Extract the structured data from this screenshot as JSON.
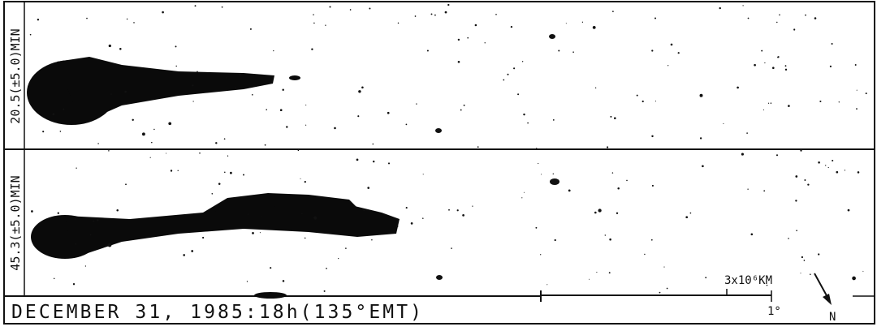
{
  "panels": [
    {
      "label": "20.5(±5.0)MIN"
    },
    {
      "label": "45.3(±5.0)MIN"
    }
  ],
  "caption": "DECEMBER 31, 1985:18h(135°EMT)",
  "scale": {
    "distance": "3x10⁶KM",
    "angle": "1°"
  },
  "north": "N"
}
